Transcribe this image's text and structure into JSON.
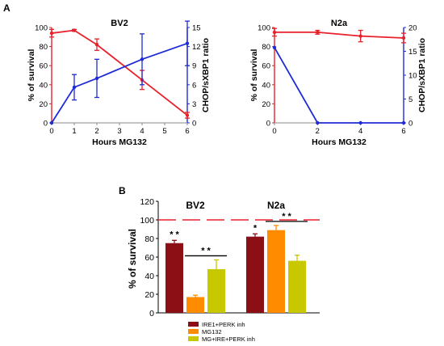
{
  "panel_labels": {
    "a": "A",
    "b": "B"
  },
  "chart_data": [
    {
      "id": "bv2_line",
      "type": "line",
      "title": "BV2",
      "xlabel": "Hours MG132",
      "ylabel_left": "% of survival",
      "ylabel_right": "CHOP/sXBP1 ratio",
      "xlim": [
        0,
        6
      ],
      "x_ticks": [
        0,
        1,
        2,
        3,
        4,
        5,
        6
      ],
      "ylim_left": [
        0,
        100
      ],
      "y_ticks_left": [
        0,
        20,
        40,
        60,
        80,
        100
      ],
      "ylim_right": [
        0,
        15
      ],
      "y_ticks_right": [
        0,
        3,
        6,
        9,
        12,
        15
      ],
      "grid": false,
      "series": [
        {
          "axis": "left",
          "color": "#e8212b",
          "x": [
            0,
            1,
            2,
            4,
            6
          ],
          "y": [
            94,
            97,
            82,
            45,
            8
          ],
          "err": [
            4,
            1,
            6,
            10,
            3
          ]
        },
        {
          "axis": "right",
          "color": "#1f2bd6",
          "x": [
            0,
            1,
            2,
            4,
            6
          ],
          "y": [
            0,
            5.6,
            7.0,
            10.0,
            12.5
          ],
          "err": [
            0,
            2.0,
            3.0,
            4.0,
            3.5
          ]
        }
      ]
    },
    {
      "id": "n2a_line",
      "type": "line",
      "title": "N2a",
      "xlabel": "Hours MG132",
      "ylabel_left": "% of survival",
      "ylabel_right": "CHOP/sXBP1 ratio",
      "xlim": [
        0,
        6
      ],
      "x_ticks": [
        0,
        2,
        4,
        6
      ],
      "ylim_left": [
        0,
        100
      ],
      "y_ticks_left": [
        0,
        20,
        40,
        60,
        80,
        100
      ],
      "ylim_right": [
        0,
        20
      ],
      "y_ticks_right": [
        0,
        5,
        10,
        15,
        20
      ],
      "grid": false,
      "series": [
        {
          "axis": "left",
          "color": "#e8212b",
          "x": [
            0,
            2,
            4,
            6
          ],
          "y": [
            95,
            95,
            91,
            89
          ],
          "err": [
            4,
            2,
            6,
            5
          ]
        },
        {
          "axis": "right",
          "color": "#1f2bd6",
          "x": [
            0,
            2,
            4,
            6
          ],
          "y": [
            15.8,
            0,
            0,
            0
          ],
          "err": [
            0,
            0,
            0,
            0
          ]
        }
      ]
    },
    {
      "id": "survival_bar",
      "type": "bar",
      "ylabel": "% of survival",
      "ylim": [
        0,
        120
      ],
      "y_ticks": [
        0,
        20,
        40,
        60,
        80,
        100,
        120
      ],
      "reference_line": 100,
      "reference_color": "#e8212b",
      "grid": false,
      "categories": [
        "BV2",
        "N2a"
      ],
      "series": [
        {
          "name": "IRE1+PERK inh",
          "color": "#8b0f14",
          "values": [
            75,
            82
          ],
          "err": [
            3,
            3
          ]
        },
        {
          "name": "MG132",
          "color": "#ff8c00",
          "values": [
            17,
            89
          ],
          "err": [
            2,
            5
          ]
        },
        {
          "name": "MG+IRE+PERK inh",
          "color": "#c8c800",
          "values": [
            47,
            56
          ],
          "err": [
            10,
            6
          ]
        }
      ],
      "annotations": [
        {
          "text": "* *",
          "category": 0,
          "series": 0
        },
        {
          "text": "*",
          "category": 1,
          "series": 0
        },
        {
          "text": "* *",
          "category": 0,
          "bracket": [
            1,
            2
          ]
        },
        {
          "text": "* *",
          "category": 1,
          "bracket": [
            1,
            2
          ]
        }
      ],
      "legend_position": "bottom"
    }
  ]
}
